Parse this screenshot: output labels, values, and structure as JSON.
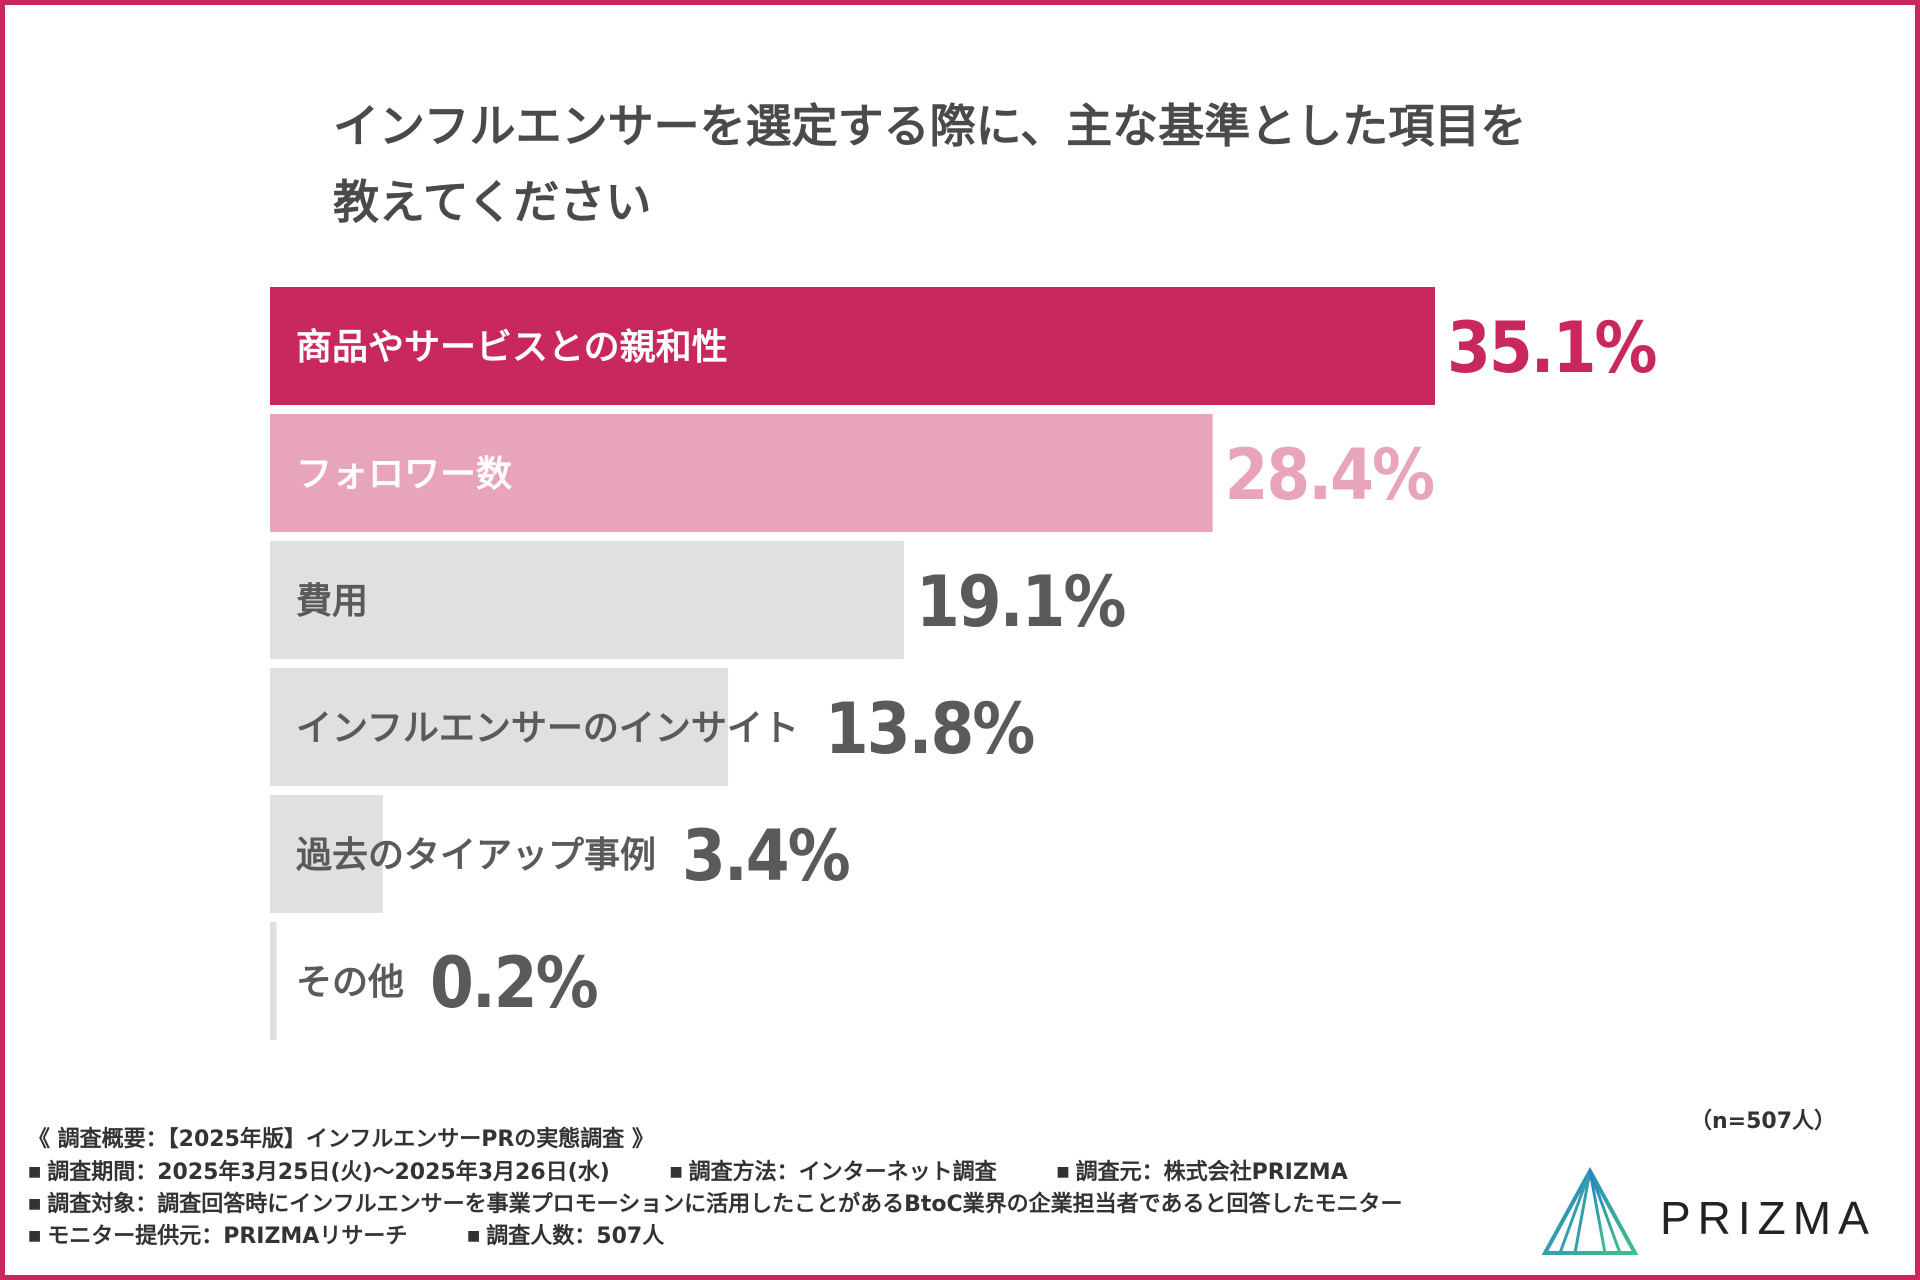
{
  "title": {
    "line1": "インフルエンサーを選定する際に、主な基準とした項目を",
    "line2": "教えてください"
  },
  "colors": {
    "frame": "#c9285d",
    "primary": "#c9285d",
    "secondary": "#e8a4b8",
    "neutral_bar": "#e0e0e0",
    "neutral_text": "#5a5a5a"
  },
  "chart_data": {
    "type": "bar",
    "orientation": "horizontal",
    "title": "インフルエンサーを選定する際に、主な基準とした項目を教えてください",
    "categories": [
      "商品やサービスとの親和性",
      "フォロワー数",
      "費用",
      "インフルエンサーのインサイト",
      "過去のタイアップ事例",
      "その他"
    ],
    "values": [
      35.1,
      28.4,
      19.1,
      13.8,
      3.4,
      0.2
    ],
    "value_labels": [
      "35.1%",
      "28.4%",
      "19.1%",
      "13.8%",
      "3.4%",
      "0.2%"
    ],
    "unit": "%",
    "xlim": [
      0,
      35.1
    ],
    "xlabel": "",
    "ylabel": "",
    "grid": false,
    "legend": "none"
  },
  "sample_size": "（n=507人）",
  "footer": {
    "heading": "《 調査概要：【2025年版】インフルエンサーPRの実態調査 》",
    "period": "調査期間：2025年3月25日(火)〜2025年3月26日(水)",
    "method": "調査方法：インターネット調査",
    "organizer": "調査元：株式会社PRIZMA",
    "target": "調査対象：調査回答時にインフルエンサーを事業プロモーションに活用したことがあるBtoC業界の企業担当者であると回答したモニター",
    "provider": "モニター提供元：PRIZMAリサーチ",
    "count": "調査人数：507人",
    "bullet": "■"
  },
  "logo": {
    "text": "PRIZMA",
    "icon": "prizma-triangle-icon"
  }
}
